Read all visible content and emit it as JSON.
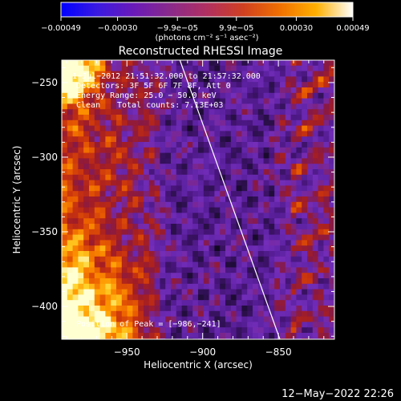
{
  "chart_data": {
    "type": "heatmap",
    "title": "Reconstructed RHESSI Image",
    "xlabel": "Heliocentric X (arcsec)",
    "ylabel": "Heliocentric Y (arcsec)",
    "xlim": [
      -993,
      -813
    ],
    "ylim": [
      -422,
      -235
    ],
    "xticks": [
      {
        "value": -950,
        "label": "−950"
      },
      {
        "value": -900,
        "label": "−900"
      },
      {
        "value": -850,
        "label": "−850"
      }
    ],
    "yticks": [
      {
        "value": -250,
        "label": "−250"
      },
      {
        "value": -300,
        "label": "−300"
      },
      {
        "value": -350,
        "label": "−350"
      },
      {
        "value": -400,
        "label": "−400"
      }
    ],
    "colorbar": {
      "range": [
        -0.00049,
        0.00049
      ],
      "tick_values": [
        -0.00049,
        -0.0003,
        -9.9e-05,
        9.9e-05,
        0.0003,
        0.00049
      ],
      "tick_labels": [
        "−0.00049",
        "−0.00030",
        "−9.9e−05",
        "9.9e−05",
        "0.00030",
        "0.00049"
      ],
      "unit_label": "(photons cm⁻² s⁻¹ asec⁻²)",
      "colors": [
        "#0000ff",
        "#3a1ae0",
        "#6a1ab8",
        "#8a2a8a",
        "#b03060",
        "#d04020",
        "#f07000",
        "#ffb000",
        "#ffffff"
      ]
    },
    "annotations": {
      "time_range": "1−Jul−2012 21:51:32.000 to 21:57:32.000",
      "detectors": "Detectors: 3F 5F 6F 7F 8F, Att 0",
      "energy_range": "Energy Range: 25.0 − 50.0 keV",
      "clean_label": "Clean",
      "total_counts": "Total counts: 7.13E+03",
      "peak_position": "Position of Peak = [−986,−241]"
    },
    "limb_line": {
      "points": [
        [
          -915,
          -235
        ],
        [
          -849,
          -422
        ]
      ]
    },
    "grid": false,
    "legend": "none"
  },
  "footer": {
    "timestamp": "12−May−2022 22:26"
  }
}
